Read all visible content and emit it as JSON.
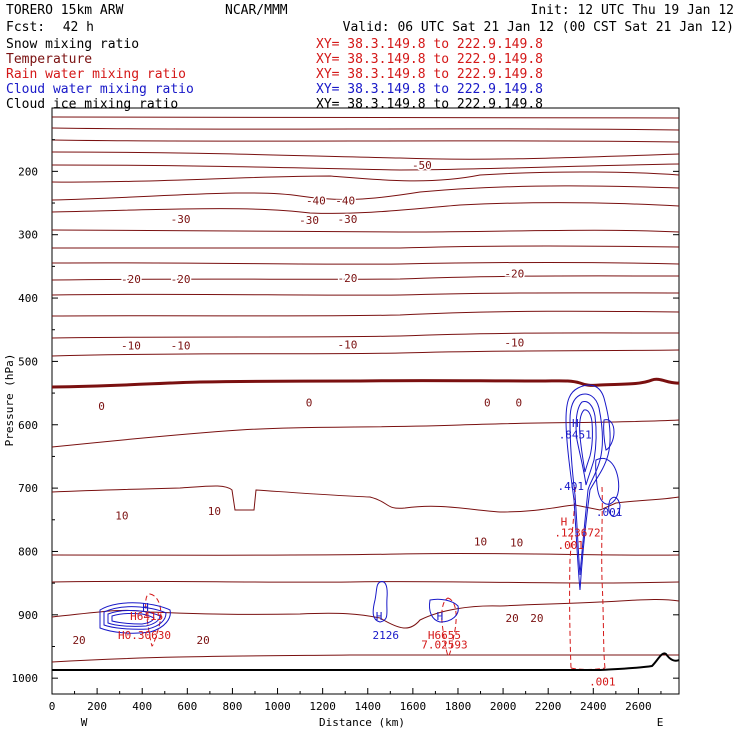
{
  "header": {
    "model": "TORERO  15km ARW",
    "org": "NCAR/MMM",
    "init": "Init: 12 UTC Thu 19 Jan 12",
    "fcst_label": "Fcst:",
    "fcst_value": "42 h",
    "valid": "Valid: 06 UTC Sat 21 Jan 12 (00 CST Sat 21 Jan 12)"
  },
  "colors": {
    "black": "#000000",
    "brown": "#7a1010",
    "red": "#d41818",
    "blue": "#1818c8"
  },
  "chart_data": {
    "type": "contour_cross_section",
    "legend": [
      {
        "label": "Snow mixing ratio",
        "color": "black",
        "xy": "XY=  38.3.149.8 to 222.9.149.8",
        "xy_color": "red"
      },
      {
        "label": "Temperature",
        "color": "brown",
        "xy": "XY=  38.3.149.8 to 222.9.149.8",
        "xy_color": "red"
      },
      {
        "label": "Rain water mixing ratio",
        "color": "red",
        "xy": "XY=  38.3.149.8 to 222.9.149.8",
        "xy_color": "red"
      },
      {
        "label": "Cloud water mixing ratio",
        "color": "blue",
        "xy": "XY=  38.3.149.8 to 222.9.149.8",
        "xy_color": "blue"
      },
      {
        "label": "Cloud ice mixing ratio",
        "color": "black",
        "xy": "XY=  38.3.149.8 to 222.9.149.8",
        "xy_color": "black"
      }
    ],
    "xlabel": "Distance (km)",
    "ylabel": "Pressure (hPa)",
    "xlim": [
      0,
      2780
    ],
    "ylim": [
      100,
      1025
    ],
    "xticks": [
      0,
      200,
      400,
      600,
      800,
      1000,
      1200,
      1400,
      1600,
      1800,
      2000,
      2200,
      2400,
      2600
    ],
    "yticks": [
      200,
      300,
      400,
      500,
      600,
      700,
      800,
      900,
      1000
    ],
    "x_end_labels": {
      "left": "W",
      "right": "E"
    },
    "temperature_contour_labels": [
      {
        "text": "-50",
        "x": 1640,
        "p": 190
      },
      {
        "text": "-40",
        "x": 1170,
        "p": 246
      },
      {
        "text": "-40",
        "x": 1300,
        "p": 246
      },
      {
        "text": "-30",
        "x": 570,
        "p": 275
      },
      {
        "text": "-30",
        "x": 1140,
        "p": 277
      },
      {
        "text": "-30",
        "x": 1310,
        "p": 275
      },
      {
        "text": "-20",
        "x": 350,
        "p": 370
      },
      {
        "text": "-20",
        "x": 570,
        "p": 370
      },
      {
        "text": "-20",
        "x": 1310,
        "p": 368
      },
      {
        "text": "-20",
        "x": 2050,
        "p": 361
      },
      {
        "text": "-10",
        "x": 350,
        "p": 475
      },
      {
        "text": "-10",
        "x": 570,
        "p": 475
      },
      {
        "text": "-10",
        "x": 1310,
        "p": 473
      },
      {
        "text": "-10",
        "x": 2050,
        "p": 470
      },
      {
        "text": "0",
        "x": 220,
        "p": 570
      },
      {
        "text": "0",
        "x": 1140,
        "p": 565
      },
      {
        "text": "0",
        "x": 1930,
        "p": 565
      },
      {
        "text": "0",
        "x": 2070,
        "p": 565
      },
      {
        "text": "10",
        "x": 310,
        "p": 743
      },
      {
        "text": "10",
        "x": 720,
        "p": 736
      },
      {
        "text": "10",
        "x": 1900,
        "p": 784
      },
      {
        "text": "10",
        "x": 2060,
        "p": 786
      },
      {
        "text": "20",
        "x": 120,
        "p": 940
      },
      {
        "text": "20",
        "x": 670,
        "p": 940
      },
      {
        "text": "20",
        "x": 2040,
        "p": 905
      },
      {
        "text": "20",
        "x": 2150,
        "p": 905
      }
    ],
    "annotations": [
      {
        "text": "H",
        "x": 415,
        "p": 888,
        "color": "blue"
      },
      {
        "text": "H6415",
        "x": 420,
        "p": 902,
        "color": "red"
      },
      {
        "text": "H0.30630",
        "x": 410,
        "p": 932,
        "color": "red"
      },
      {
        "text": "H",
        "x": 1450,
        "p": 902,
        "color": "blue"
      },
      {
        "text": "2126",
        "x": 1480,
        "p": 932,
        "color": "blue"
      },
      {
        "text": "H",
        "x": 1720,
        "p": 902,
        "color": "blue"
      },
      {
        "text": "H6655",
        "x": 1740,
        "p": 932,
        "color": "red"
      },
      {
        "text": "7.02593",
        "x": 1740,
        "p": 947,
        "color": "red"
      },
      {
        "text": "H",
        "x": 2320,
        "p": 597,
        "color": "blue"
      },
      {
        "text": ".8451",
        "x": 2320,
        "p": 615,
        "color": "blue"
      },
      {
        "text": ".401",
        "x": 2300,
        "p": 697,
        "color": "blue"
      },
      {
        "text": ".001",
        "x": 2470,
        "p": 738,
        "color": "blue"
      },
      {
        "text": "H",
        "x": 2270,
        "p": 753,
        "color": "red"
      },
      {
        "text": ".123672",
        "x": 2330,
        "p": 770,
        "color": "red"
      },
      {
        "text": ".001",
        "x": 2300,
        "p": 790,
        "color": "red"
      },
      {
        "text": ".001",
        "x": 2440,
        "p": 1005,
        "color": "red"
      }
    ]
  }
}
